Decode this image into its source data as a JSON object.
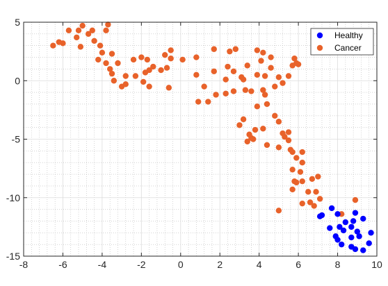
{
  "chart_data": {
    "type": "scatter",
    "title": "",
    "xlabel": "",
    "ylabel": "",
    "xlim": [
      -8,
      10
    ],
    "ylim": [
      -15,
      5
    ],
    "x_ticks": [
      -8,
      -6,
      -4,
      -2,
      0,
      2,
      4,
      6,
      8,
      10
    ],
    "y_ticks": [
      -15,
      -10,
      -5,
      0,
      5
    ],
    "grid": "major and minor (dotted)",
    "legend_position": "top-right",
    "series": [
      {
        "name": "Healthy",
        "color": "#0000ff",
        "points": [
          [
            7.7,
            -10.9
          ],
          [
            8.0,
            -11.4
          ],
          [
            8.9,
            -11.3
          ],
          [
            9.3,
            -11.8
          ],
          [
            8.4,
            -12.1
          ],
          [
            8.8,
            -12.0
          ],
          [
            7.2,
            -11.5
          ],
          [
            7.6,
            -12.6
          ],
          [
            8.1,
            -12.5
          ],
          [
            8.7,
            -12.5
          ],
          [
            9.0,
            -12.9
          ],
          [
            9.7,
            -13.0
          ],
          [
            8.3,
            -12.8
          ],
          [
            7.9,
            -13.3
          ],
          [
            8.7,
            -13.4
          ],
          [
            9.1,
            -13.3
          ],
          [
            8.0,
            -13.6
          ],
          [
            9.6,
            -13.9
          ],
          [
            8.7,
            -14.2
          ],
          [
            8.9,
            -14.4
          ],
          [
            9.3,
            -14.5
          ],
          [
            8.2,
            -14.0
          ],
          [
            7.1,
            -11.6
          ]
        ]
      },
      {
        "name": "Cancer",
        "color": "#e8622a",
        "points": [
          [
            -6.5,
            3.0
          ],
          [
            -6.2,
            3.3
          ],
          [
            -6.0,
            3.2
          ],
          [
            -5.7,
            4.3
          ],
          [
            -5.3,
            3.7
          ],
          [
            -5.2,
            4.3
          ],
          [
            -5.0,
            4.7
          ],
          [
            -5.1,
            2.9
          ],
          [
            -4.7,
            4.0
          ],
          [
            -4.5,
            4.3
          ],
          [
            -4.4,
            3.4
          ],
          [
            -4.2,
            1.8
          ],
          [
            -4.1,
            3.0
          ],
          [
            -4.0,
            2.4
          ],
          [
            -3.8,
            4.3
          ],
          [
            -3.7,
            4.8
          ],
          [
            -3.8,
            1.5
          ],
          [
            -3.6,
            1.0
          ],
          [
            -3.5,
            2.3
          ],
          [
            -3.5,
            0.6
          ],
          [
            -3.4,
            0.0
          ],
          [
            -3.2,
            1.5
          ],
          [
            -3.0,
            -0.5
          ],
          [
            -2.8,
            -0.3
          ],
          [
            -2.8,
            0.4
          ],
          [
            -2.4,
            1.8
          ],
          [
            -2.3,
            0.4
          ],
          [
            -2.0,
            2.0
          ],
          [
            -1.9,
            -0.1
          ],
          [
            -1.8,
            0.7
          ],
          [
            -1.6,
            0.9
          ],
          [
            -1.6,
            -0.5
          ],
          [
            -1.7,
            1.8
          ],
          [
            -1.4,
            1.2
          ],
          [
            -1.0,
            0.9
          ],
          [
            -0.8,
            2.2
          ],
          [
            -0.7,
            1.1
          ],
          [
            -0.6,
            -0.6
          ],
          [
            -0.5,
            1.9
          ],
          [
            -0.5,
            2.6
          ],
          [
            0.1,
            1.8
          ],
          [
            0.8,
            2.0
          ],
          [
            0.8,
            0.5
          ],
          [
            0.9,
            -1.8
          ],
          [
            1.2,
            -0.5
          ],
          [
            1.4,
            -1.8
          ],
          [
            1.7,
            2.7
          ],
          [
            1.7,
            0.8
          ],
          [
            1.8,
            -1.2
          ],
          [
            2.3,
            -1.1
          ],
          [
            2.3,
            0.1
          ],
          [
            2.4,
            1.2
          ],
          [
            2.5,
            2.5
          ],
          [
            2.7,
            0.8
          ],
          [
            2.7,
            -0.9
          ],
          [
            2.8,
            2.7
          ],
          [
            3.1,
            0.3
          ],
          [
            3.2,
            0.1
          ],
          [
            3.3,
            -0.8
          ],
          [
            3.4,
            1.3
          ],
          [
            3.6,
            -0.9
          ],
          [
            3.9,
            2.6
          ],
          [
            3.9,
            0.5
          ],
          [
            4.1,
            1.7
          ],
          [
            4.2,
            -0.8
          ],
          [
            4.3,
            -1.2
          ],
          [
            4.2,
            2.4
          ],
          [
            4.3,
            0.4
          ],
          [
            4.4,
            -2.0
          ],
          [
            4.6,
            1.1
          ],
          [
            4.6,
            2.0
          ],
          [
            4.8,
            -0.5
          ],
          [
            5.0,
            0.3
          ],
          [
            5.2,
            -0.2
          ],
          [
            5.5,
            0.4
          ],
          [
            5.7,
            1.3
          ],
          [
            5.8,
            1.9
          ],
          [
            5.9,
            1.5
          ],
          [
            6.0,
            1.4
          ],
          [
            3.0,
            -3.8
          ],
          [
            3.2,
            -3.3
          ],
          [
            3.4,
            -5.2
          ],
          [
            3.5,
            -4.6
          ],
          [
            3.6,
            -4.9
          ],
          [
            3.7,
            -5.0
          ],
          [
            3.8,
            -4.2
          ],
          [
            3.9,
            -2.2
          ],
          [
            4.2,
            -4.1
          ],
          [
            4.4,
            -5.5
          ],
          [
            4.8,
            -3.0
          ],
          [
            5.0,
            -3.5
          ],
          [
            5.2,
            -4.5
          ],
          [
            5.3,
            -4.8
          ],
          [
            5.0,
            -5.7
          ],
          [
            5.5,
            -5.1
          ],
          [
            5.5,
            -4.4
          ],
          [
            5.6,
            -5.9
          ],
          [
            5.7,
            -6.1
          ],
          [
            5.9,
            -6.6
          ],
          [
            6.2,
            -6.1
          ],
          [
            5.7,
            -7.6
          ],
          [
            6.1,
            -7.8
          ],
          [
            6.2,
            -7.0
          ],
          [
            5.9,
            -8.7
          ],
          [
            6.2,
            -8.6
          ],
          [
            5.7,
            -9.3
          ],
          [
            5.8,
            -8.6
          ],
          [
            6.5,
            -9.5
          ],
          [
            6.7,
            -8.4
          ],
          [
            6.9,
            -9.5
          ],
          [
            7.0,
            -8.2
          ],
          [
            7.1,
            -10.1
          ],
          [
            6.6,
            -10.4
          ],
          [
            6.8,
            -10.7
          ],
          [
            5.0,
            -11.1
          ],
          [
            8.9,
            -10.2
          ],
          [
            8.2,
            -11.4
          ],
          [
            6.2,
            -10.5
          ]
        ]
      }
    ]
  },
  "legend": {
    "items": [
      {
        "label": "Healthy",
        "color": "#0000ff"
      },
      {
        "label": "Cancer",
        "color": "#e8622a"
      }
    ]
  }
}
